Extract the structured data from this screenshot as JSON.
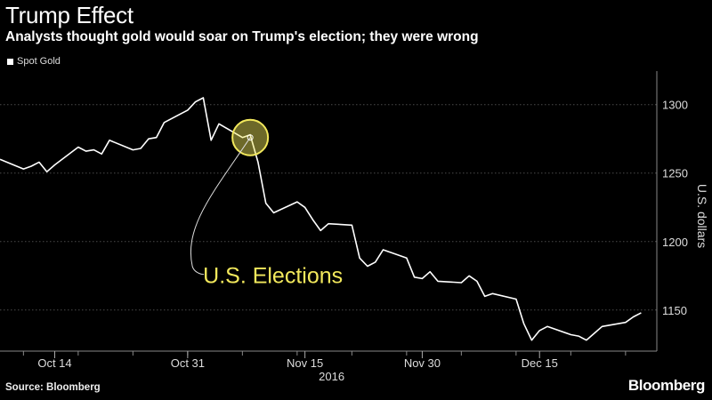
{
  "title": "Trump Effect",
  "subtitle": "Analysts thought gold would soar on Trump's election; they were wrong",
  "source": "Source: Bloomberg",
  "brand": "Bloomberg",
  "chart_data": {
    "type": "line",
    "legend_position": "top-left",
    "grid": true,
    "ylabel": "U.S. dollars",
    "ylim": [
      1120,
      1318
    ],
    "xlim": [
      "2016-10-07",
      "2016-12-30"
    ],
    "x_ticks": [
      "Oct 14",
      "Oct 31",
      "Nov 15",
      "Nov 30",
      "Dec 15"
    ],
    "x_tick_dates": [
      "2016-10-14",
      "2016-10-31",
      "2016-11-15",
      "2016-11-30",
      "2016-12-15"
    ],
    "x_year_label": "2016",
    "y_ticks": [
      1150,
      1200,
      1250,
      1300
    ],
    "series": [
      {
        "name": "Spot Gold",
        "color": "#ffffff",
        "x": [
          "2016-10-07",
          "2016-10-10",
          "2016-10-11",
          "2016-10-12",
          "2016-10-13",
          "2016-10-14",
          "2016-10-17",
          "2016-10-18",
          "2016-10-19",
          "2016-10-20",
          "2016-10-21",
          "2016-10-24",
          "2016-10-25",
          "2016-10-26",
          "2016-10-27",
          "2016-10-28",
          "2016-10-31",
          "2016-11-01",
          "2016-11-02",
          "2016-11-03",
          "2016-11-04",
          "2016-11-07",
          "2016-11-08",
          "2016-11-09",
          "2016-11-10",
          "2016-11-11",
          "2016-11-14",
          "2016-11-15",
          "2016-11-16",
          "2016-11-17",
          "2016-11-18",
          "2016-11-21",
          "2016-11-22",
          "2016-11-23",
          "2016-11-24",
          "2016-11-25",
          "2016-11-28",
          "2016-11-29",
          "2016-11-30",
          "2016-12-01",
          "2016-12-02",
          "2016-12-05",
          "2016-12-06",
          "2016-12-07",
          "2016-12-08",
          "2016-12-09",
          "2016-12-12",
          "2016-12-13",
          "2016-12-14",
          "2016-12-15",
          "2016-12-16",
          "2016-12-19",
          "2016-12-20",
          "2016-12-21",
          "2016-12-22",
          "2016-12-23",
          "2016-12-26",
          "2016-12-27",
          "2016-12-28"
        ],
        "values": [
          1260,
          1253,
          1255,
          1258,
          1251,
          1256,
          1269,
          1266,
          1267,
          1264,
          1274,
          1267,
          1268,
          1275,
          1276,
          1287,
          1296,
          1302,
          1305,
          1274,
          1286,
          1276,
          1278,
          1258,
          1228,
          1221,
          1229,
          1225,
          1216,
          1208,
          1213,
          1212,
          1188,
          1182,
          1185,
          1194,
          1188,
          1174,
          1173,
          1178,
          1171,
          1170,
          1175,
          1171,
          1160,
          1162,
          1158,
          1140,
          1128,
          1135,
          1138,
          1132,
          1131,
          1128,
          1133,
          1138,
          1141,
          1145,
          1148
        ]
      }
    ],
    "annotations": [
      {
        "text": "U.S. Elections",
        "x": "2016-11-08",
        "y": 1276,
        "color": "#f2e85c"
      }
    ]
  }
}
